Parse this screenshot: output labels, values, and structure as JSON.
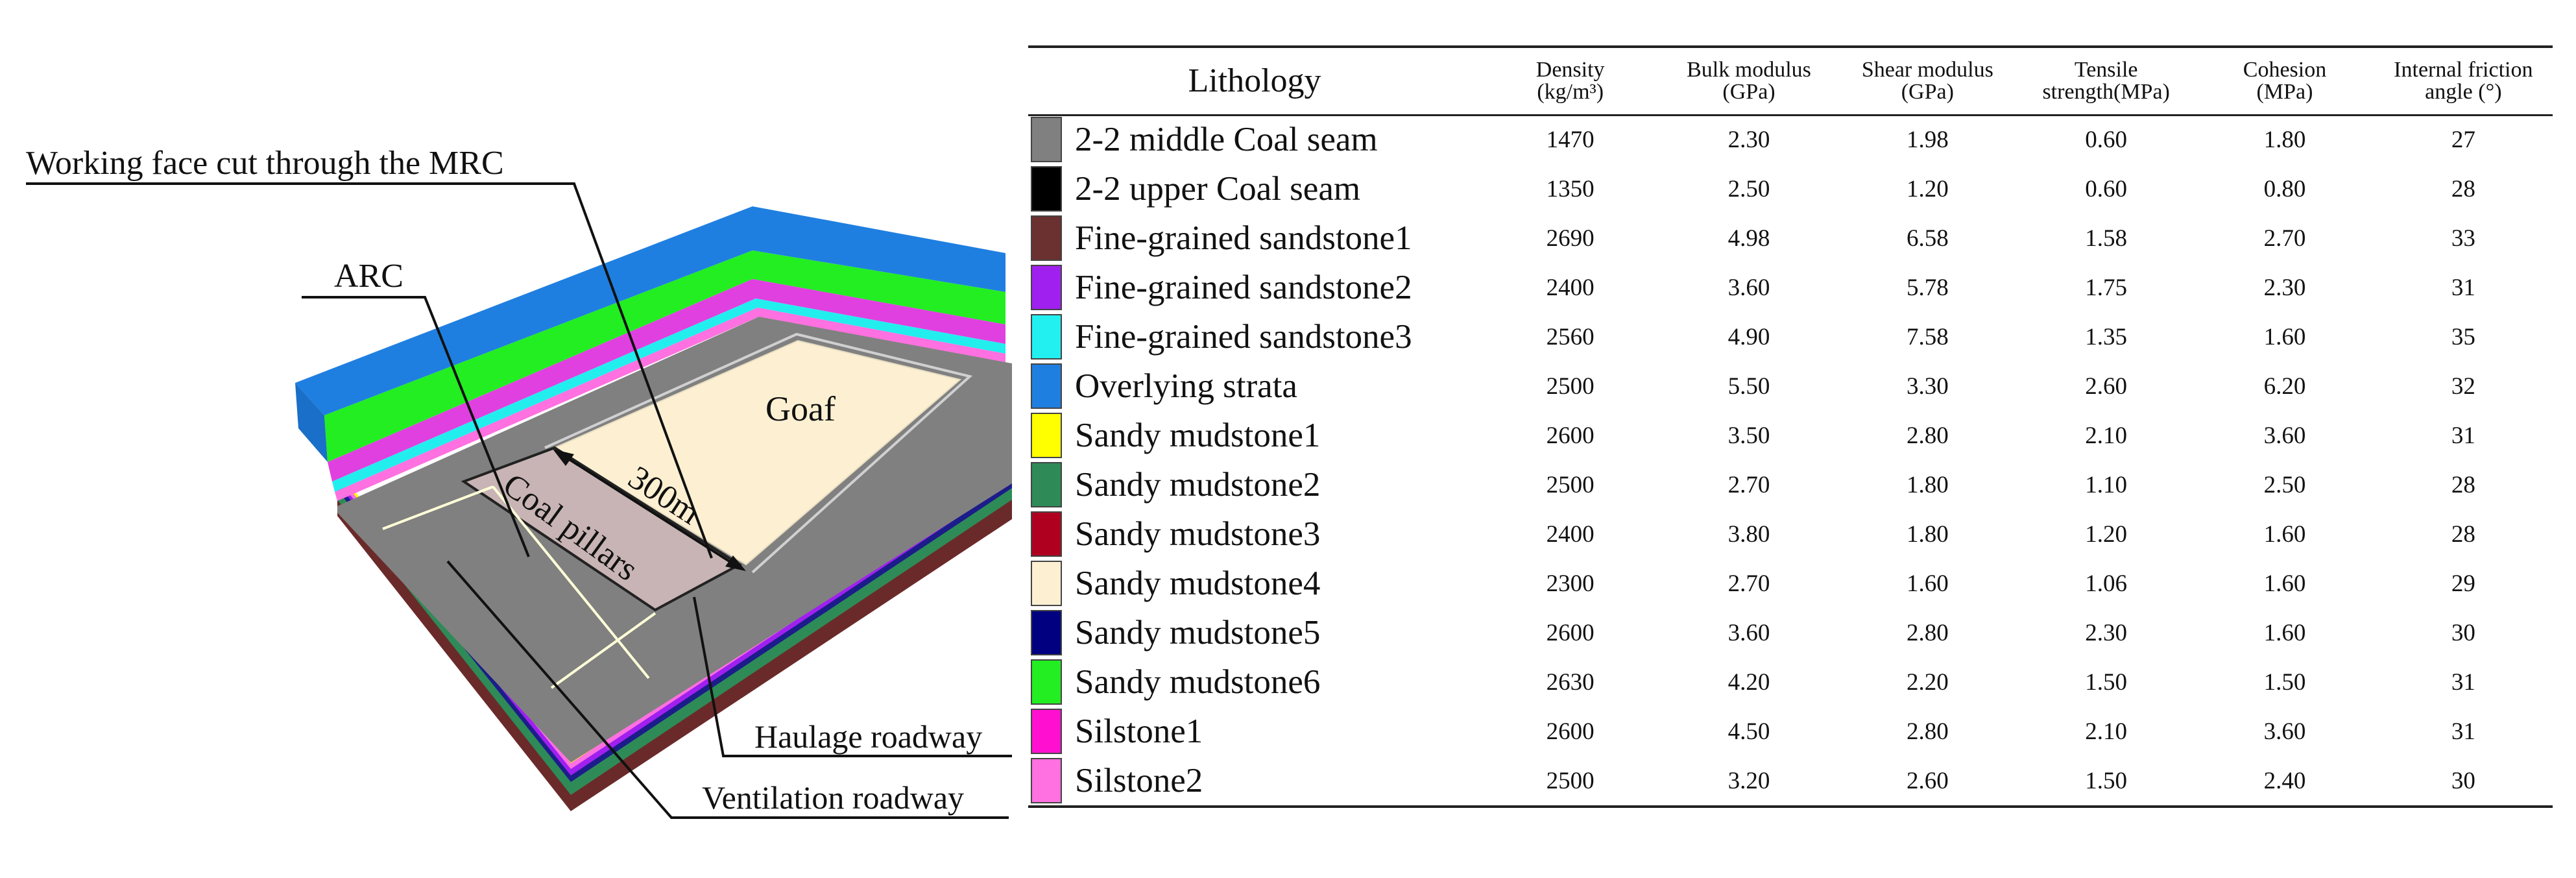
{
  "diagram": {
    "labels": {
      "working_face": "Working face cut through the MRC",
      "arc": "ARC",
      "goaf": "Goaf",
      "coal_pillars": "Coal pillars",
      "width": "300m",
      "haulage": "Haulage roadway",
      "ventilation": "Ventilation roadway"
    },
    "colors": {
      "overlying": "#1f7fe0",
      "green": "#22ee22",
      "magenta": "#e040e0",
      "cyan": "#22eeee",
      "coal": "#808080",
      "goaf": "#fdf0d2",
      "pillar": "#c8b4b4",
      "brown": "#6b2a2a"
    }
  },
  "table": {
    "headers": {
      "lithology": "Lithology",
      "density": [
        "Density",
        "(kg/m³)"
      ],
      "bulk": [
        "Bulk modulus",
        "(GPa)"
      ],
      "shear": [
        "Shear modulus",
        "(GPa)"
      ],
      "tensile": [
        "Tensile",
        "strength(MPa)"
      ],
      "cohesion": [
        "Cohesion",
        "(MPa)"
      ],
      "friction": [
        "Internal friction",
        "angle (°)"
      ]
    },
    "rows": [
      {
        "color": "#808080",
        "name": "2-2 middle Coal seam",
        "density": "1470",
        "bulk": "2.30",
        "shear": "1.98",
        "tensile": "0.60",
        "cohesion": "1.80",
        "friction": "27"
      },
      {
        "color": "#000000",
        "name": "2-2 upper Coal seam",
        "density": "1350",
        "bulk": "2.50",
        "shear": "1.20",
        "tensile": "0.60",
        "cohesion": "0.80",
        "friction": "28"
      },
      {
        "color": "#6b3030",
        "name": "Fine-grained sandstone1",
        "density": "2690",
        "bulk": "4.98",
        "shear": "6.58",
        "tensile": "1.58",
        "cohesion": "2.70",
        "friction": "33"
      },
      {
        "color": "#a020f0",
        "name": "Fine-grained sandstone2",
        "density": "2400",
        "bulk": "3.60",
        "shear": "5.78",
        "tensile": "1.75",
        "cohesion": "2.30",
        "friction": "31"
      },
      {
        "color": "#22f0f0",
        "name": "Fine-grained sandstone3",
        "density": "2560",
        "bulk": "4.90",
        "shear": "7.58",
        "tensile": "1.35",
        "cohesion": "1.60",
        "friction": "35"
      },
      {
        "color": "#1f7fe0",
        "name": "Overlying strata",
        "density": "2500",
        "bulk": "5.50",
        "shear": "3.30",
        "tensile": "2.60",
        "cohesion": "6.20",
        "friction": "32"
      },
      {
        "color": "#ffff00",
        "name": "Sandy mudstone1",
        "density": "2600",
        "bulk": "3.50",
        "shear": "2.80",
        "tensile": "2.10",
        "cohesion": "3.60",
        "friction": "31"
      },
      {
        "color": "#2e8b57",
        "name": "Sandy mudstone2",
        "density": "2500",
        "bulk": "2.70",
        "shear": "1.80",
        "tensile": "1.10",
        "cohesion": "2.50",
        "friction": "28"
      },
      {
        "color": "#b00020",
        "name": "Sandy mudstone3",
        "density": "2400",
        "bulk": "3.80",
        "shear": "1.80",
        "tensile": "1.20",
        "cohesion": "1.60",
        "friction": "28"
      },
      {
        "color": "#fdf0d2",
        "name": "Sandy mudstone4",
        "density": "2300",
        "bulk": "2.70",
        "shear": "1.60",
        "tensile": "1.06",
        "cohesion": "1.60",
        "friction": "29"
      },
      {
        "color": "#000080",
        "name": "Sandy mudstone5",
        "density": "2600",
        "bulk": "3.60",
        "shear": "2.80",
        "tensile": "2.30",
        "cohesion": "1.60",
        "friction": "30"
      },
      {
        "color": "#22ee22",
        "name": "Sandy mudstone6",
        "density": "2630",
        "bulk": "4.20",
        "shear": "2.20",
        "tensile": "1.50",
        "cohesion": "1.50",
        "friction": "31"
      },
      {
        "color": "#ff10d0",
        "name": "Silstone1",
        "density": "2600",
        "bulk": "4.50",
        "shear": "2.80",
        "tensile": "2.10",
        "cohesion": "3.60",
        "friction": "31"
      },
      {
        "color": "#ff70e0",
        "name": "Silstone2",
        "density": "2500",
        "bulk": "3.20",
        "shear": "2.60",
        "tensile": "1.50",
        "cohesion": "2.40",
        "friction": "30"
      }
    ]
  }
}
